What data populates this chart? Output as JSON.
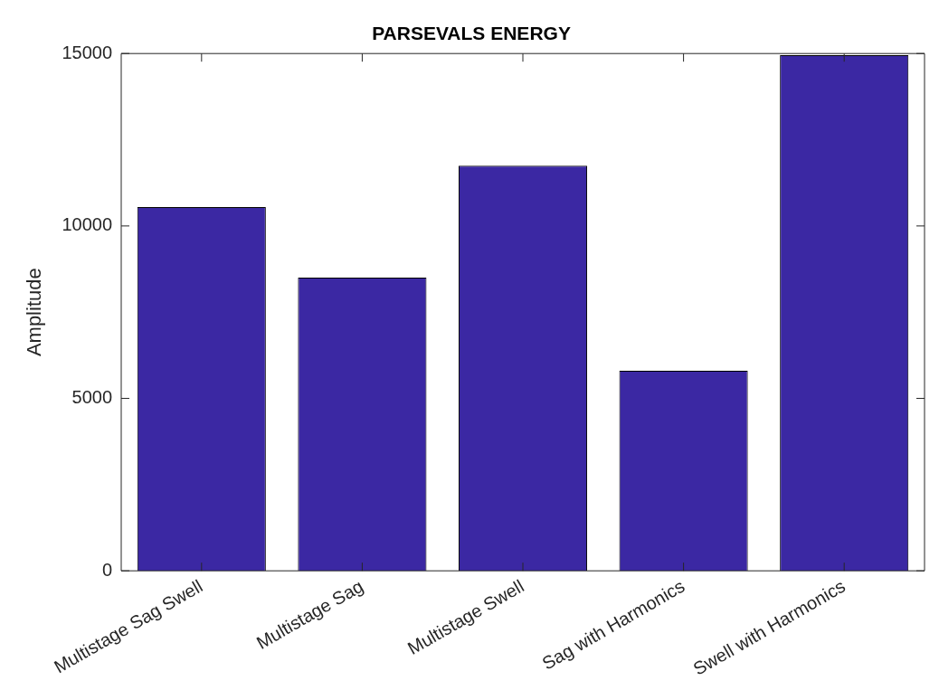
{
  "chart_data": {
    "type": "bar",
    "title": "PARSEVALS ENERGY",
    "ylabel": "Amplitude",
    "categories": [
      "Multistage Sag Swell",
      "Multistage Sag",
      "Multistage Swell",
      "Sag with Harmonics",
      "Swell with Harmonics"
    ],
    "values": [
      10550,
      8500,
      11750,
      5800,
      14950
    ],
    "color": "#3b28a3",
    "ylim": [
      0,
      15000
    ],
    "yticks": [
      0,
      5000,
      10000,
      15000
    ],
    "grid": false,
    "legend": false
  }
}
